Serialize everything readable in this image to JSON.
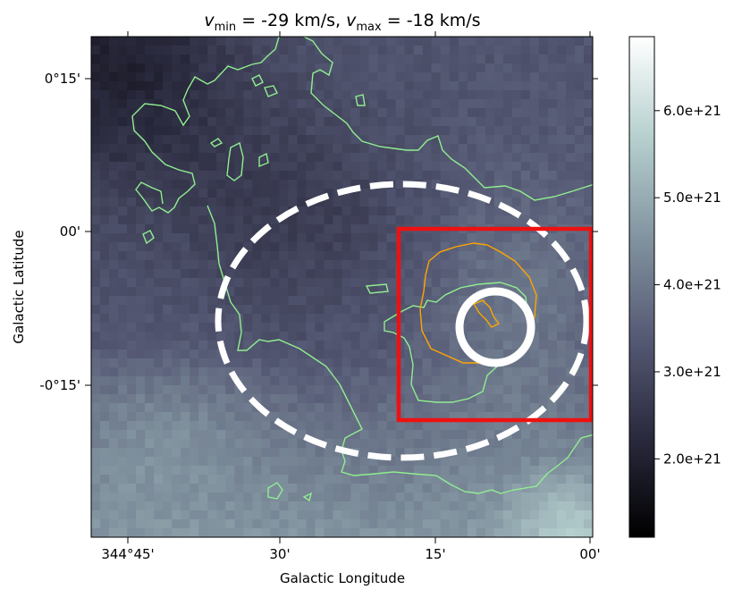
{
  "chart_data": {
    "type": "heatmap",
    "title": "v_min = -29 km/s, v_max = -18 km/s",
    "title_parts": {
      "v1": "v",
      "v1_sub": "min",
      "v1_val": " = -29 km/s, ",
      "v2": "v",
      "v2_sub": "max",
      "v2_val": " = -18 km/s"
    },
    "xlabel": "Galactic Longitude",
    "ylabel": "Galactic Latitude",
    "x_ticks": [
      {
        "label": "344°45'",
        "value_deg": 344.75
      },
      {
        "label": "30'",
        "value_deg": 344.5
      },
      {
        "label": "15'",
        "value_deg": 344.25
      },
      {
        "label": "00'",
        "value_deg": 344.0
      }
    ],
    "y_ticks": [
      {
        "label": "0°15'",
        "value_deg": 0.25
      },
      {
        "label": "00'",
        "value_deg": 0.0
      },
      {
        "label": "-0°15'",
        "value_deg": -0.25
      }
    ],
    "xlim_deg": [
      344.8,
      344.0
    ],
    "ylim_deg": [
      -0.49,
      0.31
    ],
    "colorbar": {
      "ticks": [
        "2.0e+21",
        "3.0e+21",
        "4.0e+21",
        "5.0e+21",
        "6.0e+21"
      ],
      "tick_values": [
        2e+21,
        3e+21,
        4e+21,
        5e+21,
        6e+21
      ],
      "range": [
        1.1e+21,
        6.85e+21
      ],
      "colormap": "bone"
    },
    "overlays": {
      "dashed_ellipse": {
        "color": "#ffffff",
        "center_deg": [
          344.39,
          -0.09
        ],
        "semi_axes_deg": [
          0.31,
          0.2
        ],
        "style": "dashed"
      },
      "solid_circle": {
        "color": "#ffffff",
        "center_deg": [
          344.15,
          -0.1
        ],
        "radius_deg": 0.055
      },
      "box": {
        "color": "#ee1111",
        "l_range_deg": [
          344.0,
          344.31
        ],
        "b_range_deg": [
          -0.3,
          0.005
        ]
      },
      "contours": [
        {
          "color": "#90ee90",
          "level": "outer"
        },
        {
          "color": "#ffa500",
          "level": "inner"
        }
      ]
    },
    "grid": false
  }
}
